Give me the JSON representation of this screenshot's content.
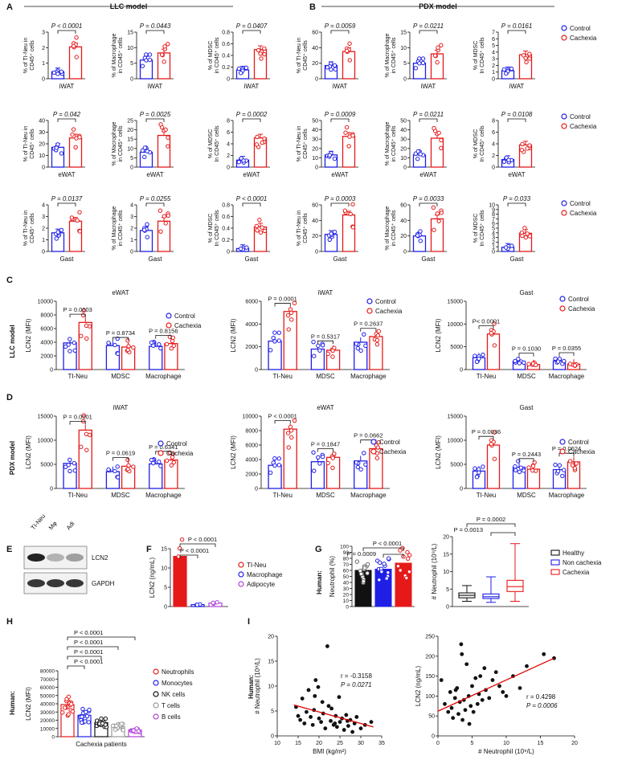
{
  "colors": {
    "blue": "#1f1fe6",
    "red": "#e61919",
    "purple": "#b040d8",
    "black": "#111111",
    "gray": "#9a9a9a",
    "line": "#e00000"
  },
  "panels": {
    "A": {
      "letter": "A",
      "heading": "LLC model"
    },
    "B": {
      "letter": "B",
      "heading": "PDX model"
    },
    "C": {
      "letter": "C",
      "side": "LLC model"
    },
    "D": {
      "letter": "D",
      "side": "PDX model"
    },
    "E": {
      "letter": "E"
    },
    "F": {
      "letter": "F"
    },
    "G": {
      "letter": "G",
      "side": "Human:"
    },
    "H": {
      "letter": "H",
      "side": "Human:"
    },
    "I": {
      "letter": "I",
      "side": "Human:"
    }
  },
  "legend_cc": [
    "Control",
    "Cachexia"
  ],
  "legend_G": [
    "Healthy",
    "Non cachexia",
    "Cachexia"
  ],
  "legend_H": [
    "Neutrophils",
    "Monocytes",
    "NK cells",
    "T cells",
    "B cells"
  ],
  "legend_F": [
    "TI-Neu",
    "Macrophage",
    "Adipocyte"
  ],
  "chart_data": [
    {
      "id": "A1",
      "type": "bar",
      "xlabel": "iWAT",
      "ylabel": [
        "% of TI-Neu in",
        "CD45⁺ cells"
      ],
      "ylim": [
        0,
        3
      ],
      "yticks": [
        0,
        1,
        2,
        3
      ],
      "values": [
        0.45,
        2.05
      ],
      "p": "P < 0.0001"
    },
    {
      "id": "A2",
      "type": "bar",
      "xlabel": "iWAT",
      "ylabel": [
        "% of Macrophage",
        "in CD45⁺ cells"
      ],
      "ylim": [
        0,
        15
      ],
      "yticks": [
        0,
        5,
        10,
        15
      ],
      "values": [
        6.0,
        8.3
      ],
      "p": "P = 0.0443"
    },
    {
      "id": "A3",
      "type": "bar",
      "xlabel": "iWAT",
      "ylabel": [
        "% of MDSC",
        "in CD45⁺ cells"
      ],
      "ylim": [
        0,
        0.8
      ],
      "yticks": [
        0.0,
        0.2,
        0.4,
        0.6,
        0.8
      ],
      "values": [
        0.15,
        0.5
      ],
      "p": "P = 0.0407"
    },
    {
      "id": "A4",
      "type": "bar",
      "xlabel": "eWAT",
      "ylabel": [
        "% of TI-Neu in",
        "CD45⁺ cells"
      ],
      "ylim": [
        0,
        40
      ],
      "yticks": [
        0,
        10,
        20,
        30,
        40
      ],
      "values": [
        17,
        25
      ],
      "p": "P = 0.042"
    },
    {
      "id": "A5",
      "type": "bar",
      "xlabel": "eWAT",
      "ylabel": [
        "% of Macrophage",
        "in CD45⁺ cells"
      ],
      "ylim": [
        0,
        25
      ],
      "yticks": [
        0,
        5,
        10,
        15,
        20,
        25
      ],
      "values": [
        8,
        17
      ],
      "p": "P = 0.0025"
    },
    {
      "id": "A6",
      "type": "bar",
      "xlabel": "eWAT",
      "ylabel": [
        "% of MDSC",
        "In CD45⁺ cells"
      ],
      "ylim": [
        0,
        8
      ],
      "yticks": [
        0,
        2,
        4,
        6,
        8
      ],
      "values": [
        1.2,
        5.0
      ],
      "p": "P = 0.0002"
    },
    {
      "id": "A7",
      "type": "bar",
      "xlabel": "Gast",
      "ylabel": [
        "% of TI-Neu in",
        "CD45⁺ cells"
      ],
      "ylim": [
        0,
        4
      ],
      "yticks": [
        0,
        1,
        2,
        3,
        4
      ],
      "values": [
        1.6,
        2.6
      ],
      "p": "P = 0.0137"
    },
    {
      "id": "A8",
      "type": "bar",
      "xlabel": "Gast",
      "ylabel": [
        "% of Macrophage",
        "in CD45⁺ cells"
      ],
      "ylim": [
        0,
        4
      ],
      "yticks": [
        0,
        1,
        2,
        3,
        4
      ],
      "values": [
        1.8,
        2.6
      ],
      "p": "P = 0.0255"
    },
    {
      "id": "A9",
      "type": "bar",
      "xlabel": "Gast",
      "ylabel": [
        "% of MDSC",
        "In CD45⁺ cells"
      ],
      "ylim": [
        0,
        0.8
      ],
      "yticks": [
        0.0,
        0.2,
        0.4,
        0.6,
        0.8
      ],
      "values": [
        0.05,
        0.42
      ],
      "p": "P < 0.0001"
    },
    {
      "id": "B1",
      "type": "bar",
      "xlabel": "iWAT",
      "ylabel": [
        "% of TI-Neu in",
        "CD45⁺ cells"
      ],
      "ylim": [
        0,
        60
      ],
      "yticks": [
        0,
        20,
        40,
        60
      ],
      "values": [
        17,
        35
      ],
      "p": "P = 0.0059"
    },
    {
      "id": "B2",
      "type": "bar",
      "xlabel": "iWAT",
      "ylabel": [
        "% of Macrophage",
        "in CD45⁺ cells"
      ],
      "ylim": [
        0,
        15
      ],
      "yticks": [
        0,
        5,
        10,
        15
      ],
      "values": [
        5,
        8
      ],
      "p": "P = 0.0211"
    },
    {
      "id": "B3",
      "type": "bar",
      "xlabel": "iWAT",
      "ylabel": [
        "% of MDSC",
        "In CD45⁺ cells"
      ],
      "ylim": [
        0,
        7
      ],
      "yticks": [
        0,
        1,
        2,
        3,
        4,
        5,
        6,
        7
      ],
      "values": [
        1.2,
        3.6
      ],
      "p": "P = 0.0161"
    },
    {
      "id": "B4",
      "type": "bar",
      "xlabel": "eWAT",
      "ylabel": [
        "% of TI-Neu in",
        "CD45⁺ cells"
      ],
      "ylim": [
        0,
        50
      ],
      "yticks": [
        0,
        10,
        20,
        30,
        40,
        50
      ],
      "values": [
        13,
        33
      ],
      "p": "P = 0.0009"
    },
    {
      "id": "B5",
      "type": "bar",
      "xlabel": "eWAT",
      "ylabel": [
        "% of Macrophage",
        "in CD45⁺ cells"
      ],
      "ylim": [
        0,
        50
      ],
      "yticks": [
        0,
        10,
        20,
        30,
        40,
        50
      ],
      "values": [
        13,
        31
      ],
      "p": "P = 0.0211"
    },
    {
      "id": "B6",
      "type": "bar",
      "xlabel": "eWAT",
      "ylabel": [
        "% of MDSC",
        "In CD45⁺ cells"
      ],
      "ylim": [
        0,
        8
      ],
      "yticks": [
        0,
        2,
        4,
        6,
        8
      ],
      "values": [
        1.3,
        3.8
      ],
      "p": "P = 0.0108"
    },
    {
      "id": "B7",
      "type": "bar",
      "xlabel": "Gast",
      "ylabel": [
        "% of TI-Neu in",
        "CD45⁺ cells"
      ],
      "ylim": [
        0,
        60
      ],
      "yticks": [
        0,
        20,
        40,
        60
      ],
      "values": [
        22,
        47
      ],
      "p": "P = 0.0003"
    },
    {
      "id": "B8",
      "type": "bar",
      "xlabel": "Gast",
      "ylabel": [
        "% of Macrophage",
        "in CD45⁺ cells"
      ],
      "ylim": [
        0,
        60
      ],
      "yticks": [
        0,
        20,
        40,
        60
      ],
      "values": [
        20,
        42
      ],
      "p": "P = 0.0033"
    },
    {
      "id": "B9",
      "type": "bar",
      "xlabel": "Gast",
      "ylabel": [
        "% of MDSC",
        "In CD45⁺ cells"
      ],
      "ylim": [
        0,
        10
      ],
      "yticks": [
        0,
        1,
        2,
        3,
        4,
        5,
        6,
        7,
        8,
        9,
        10
      ],
      "values": [
        0.9,
        3.9
      ],
      "p": "P = 0.033"
    },
    {
      "id": "C1",
      "type": "grouped-bar",
      "title": "eWAT",
      "ylabel": "LCN2 (MFI)",
      "ylim": [
        0,
        10000
      ],
      "yticks": [
        0,
        2000,
        4000,
        6000,
        8000,
        10000
      ],
      "categories": [
        "TI-Neu",
        "MDSC",
        "Macrophage"
      ],
      "series": [
        {
          "name": "Control",
          "values": [
            3900,
            3500,
            3400
          ]
        },
        {
          "name": "Cachexia",
          "values": [
            6900,
            3300,
            3800
          ]
        }
      ],
      "p": [
        "P = 0.0003",
        "P = 0.8734",
        "P = 0.8156"
      ]
    },
    {
      "id": "C2",
      "type": "grouped-bar",
      "title": "iWAT",
      "ylabel": "LCN2 (MFI)",
      "ylim": [
        0,
        6000
      ],
      "yticks": [
        0,
        2000,
        4000,
        6000
      ],
      "categories": [
        "TI-Neu",
        "MDSC",
        "Macrophage"
      ],
      "series": [
        {
          "name": "Control",
          "values": [
            2500,
            1800,
            2400
          ]
        },
        {
          "name": "Cachexia",
          "values": [
            5100,
            1700,
            2900
          ]
        }
      ],
      "p": [
        "P = 0.0001",
        "P = 0.5317",
        "P = 0.2637"
      ]
    },
    {
      "id": "C3",
      "type": "grouped-bar",
      "title": "Gast",
      "ylabel": "LCN2 (MFI)",
      "ylim": [
        0,
        15000
      ],
      "yticks": [
        0,
        5000,
        10000,
        15000
      ],
      "categories": [
        "TI-Neu",
        "MDSC",
        "Macrophage"
      ],
      "series": [
        {
          "name": "Control",
          "values": [
            2600,
            1800,
            1900
          ]
        },
        {
          "name": "Cachexia",
          "values": [
            7800,
            1100,
            1200
          ]
        }
      ],
      "p": [
        "P< 0.0001",
        "P = 0.1030",
        "P = 0.0355"
      ]
    },
    {
      "id": "D1",
      "type": "grouped-bar",
      "title": "iWAT",
      "ylabel": "LCN2 (MFI)",
      "ylim": [
        0,
        15000
      ],
      "yticks": [
        0,
        5000,
        10000,
        15000
      ],
      "categories": [
        "TI-Neu",
        "MDSC",
        "Macrophage"
      ],
      "series": [
        {
          "name": "Control",
          "values": [
            5200,
            3500,
            5100
          ]
        },
        {
          "name": "Cachexia",
          "values": [
            12100,
            4600,
            5900
          ]
        }
      ],
      "p": [
        "P = 0.0001",
        "P = 0.0619",
        "P = 0.6341"
      ]
    },
    {
      "id": "D2",
      "type": "grouped-bar",
      "title": "eWAT",
      "ylabel": "LCN2 (MFI)",
      "ylim": [
        0,
        10000
      ],
      "yticks": [
        0,
        2000,
        4000,
        6000,
        8000,
        10000
      ],
      "categories": [
        "TI-Neu",
        "MDSC",
        "Macrophage"
      ],
      "series": [
        {
          "name": "Control",
          "values": [
            3200,
            3700,
            3800
          ]
        },
        {
          "name": "Cachexia",
          "values": [
            8200,
            4300,
            5500
          ]
        }
      ],
      "p": [
        "P < 0.0001",
        "P = 0.1847",
        "P = 0.0662"
      ]
    },
    {
      "id": "D3",
      "type": "grouped-bar",
      "title": "Gast",
      "ylabel": "LCN2 (MFI)",
      "ylim": [
        0,
        15000
      ],
      "yticks": [
        0,
        5000,
        10000,
        15000
      ],
      "categories": [
        "TI-Neu",
        "MDSC",
        "Macrophage"
      ],
      "series": [
        {
          "name": "Control",
          "values": [
            3600,
            4400,
            3900
          ]
        },
        {
          "name": "Cachexia",
          "values": [
            9000,
            4000,
            5500
          ]
        }
      ],
      "p": [
        "P = 0.0036",
        "P = 0.2443",
        "P = 0.0624"
      ]
    },
    {
      "id": "F",
      "type": "bar",
      "ylabel": "LCN2 (ng/mL)",
      "ylim": [
        0,
        15
      ],
      "yticks": [
        0,
        5,
        10,
        15
      ],
      "categories": [
        "TI-Neu",
        "Macrophage",
        "Adipocyte"
      ],
      "values": [
        13,
        0.5,
        0.9
      ],
      "p": [
        "P < 0.0001",
        "P < 0.0001"
      ]
    },
    {
      "id": "G1",
      "type": "bar",
      "ylabel": "Neutrophil (%)",
      "ylim": [
        0,
        100
      ],
      "yticks": [
        0,
        10,
        20,
        30,
        40,
        50,
        60,
        70,
        80,
        90,
        100
      ],
      "categories": [
        "Healthy",
        "Non cachexia",
        "Cachexia"
      ],
      "values": [
        60,
        62,
        72
      ],
      "p": [
        "P < 0.0001",
        "P = 0.0009"
      ]
    },
    {
      "id": "G2",
      "type": "box",
      "ylabel": "# Neutrophil (10⁹/L)",
      "ylim": [
        0,
        20
      ],
      "yticks": [
        0,
        5,
        10,
        15,
        20
      ],
      "categories": [
        "Healthy",
        "Non cachexia",
        "Cachexia"
      ],
      "boxes": [
        [
          1.5,
          2.5,
          3.2,
          3.9,
          6
        ],
        [
          1.2,
          2.3,
          2.8,
          3.6,
          8.5
        ],
        [
          1.5,
          4.3,
          5.7,
          7.5,
          18
        ]
      ],
      "p": [
        "P = 0.0002",
        "P = 0.0013"
      ]
    },
    {
      "id": "H",
      "type": "bar",
      "ylabel": "LCN2 (MFI)",
      "xlabel": "Cachexia patients",
      "ylim": [
        0,
        80000
      ],
      "yticks": [
        0,
        10000,
        20000,
        30000,
        40000,
        50000,
        60000,
        70000,
        80000
      ],
      "categories": [
        "Neutrophils",
        "Monocytes",
        "NK cells",
        "T cells",
        "B cells"
      ],
      "values": [
        39000,
        26000,
        17000,
        12000,
        8000
      ],
      "p": [
        "P < 0.0001",
        "P < 0.0001",
        "P < 0.0001",
        "P < 0.0001"
      ]
    },
    {
      "id": "I1",
      "type": "scatter",
      "xlabel": "BMI (kg/m²)",
      "ylabel": "# Neutrophil (10⁹/L)",
      "xlim": [
        10,
        35
      ],
      "ylim": [
        0,
        20
      ],
      "xticks": [
        10,
        15,
        20,
        25,
        30,
        35
      ],
      "yticks": [
        0,
        5,
        10,
        15,
        20
      ],
      "r": "r = -0.3158",
      "p": "P = 0.0271",
      "fit": [
        [
          14,
          6.2
        ],
        [
          33,
          1.8
        ]
      ],
      "points": [
        [
          14.5,
          5.8
        ],
        [
          15,
          4
        ],
        [
          15.5,
          3.2
        ],
        [
          16,
          7.5
        ],
        [
          16.5,
          2.5
        ],
        [
          17,
          4.8
        ],
        [
          17.5,
          9.2
        ],
        [
          18,
          3.8
        ],
        [
          18.5,
          2.2
        ],
        [
          19,
          8
        ],
        [
          19.2,
          11.2
        ],
        [
          19.8,
          9.8
        ],
        [
          20,
          3.5
        ],
        [
          20.5,
          2.8
        ],
        [
          21,
          4.5
        ],
        [
          21.5,
          1.5
        ],
        [
          22,
          18
        ],
        [
          22.3,
          6
        ],
        [
          22.8,
          3
        ],
        [
          23,
          5.5
        ],
        [
          23.5,
          2.2
        ],
        [
          24,
          4
        ],
        [
          24.3,
          1.8
        ],
        [
          24.8,
          7.8
        ],
        [
          25,
          2.8
        ],
        [
          25.5,
          3.5
        ],
        [
          26,
          1.2
        ],
        [
          26.5,
          4.2
        ],
        [
          27,
          2
        ],
        [
          27.5,
          3.2
        ],
        [
          28,
          0.8
        ],
        [
          28.5,
          2.5
        ],
        [
          29,
          3.8
        ],
        [
          30,
          1.5
        ],
        [
          31,
          2.2
        ],
        [
          32.5,
          2.8
        ],
        [
          20.8,
          6.8
        ],
        [
          18.8,
          5.2
        ],
        [
          23.8,
          2.5
        ],
        [
          26.8,
          3
        ]
      ]
    },
    {
      "id": "I2",
      "type": "scatter",
      "xlabel": "# Neutrophil (10⁹/L)",
      "ylabel": "LCN2 (ng/mL)",
      "xlim": [
        0,
        20
      ],
      "ylim": [
        0,
        250
      ],
      "xticks": [
        0,
        5,
        10,
        15,
        20
      ],
      "yticks": [
        0,
        50,
        100,
        150,
        200,
        250
      ],
      "r": "r = 0.4298",
      "p": "P = 0.0006",
      "fit": [
        [
          0,
          62
        ],
        [
          17,
          195
        ]
      ],
      "points": [
        [
          0.5,
          140
        ],
        [
          1,
          80
        ],
        [
          1.5,
          60
        ],
        [
          1.8,
          110
        ],
        [
          2,
          70
        ],
        [
          2.2,
          45
        ],
        [
          2.5,
          95
        ],
        [
          2.8,
          120
        ],
        [
          3,
          55
        ],
        [
          3.2,
          85
        ],
        [
          3.4,
          230
        ],
        [
          3.5,
          205
        ],
        [
          3.8,
          90
        ],
        [
          4,
          65
        ],
        [
          4.2,
          180
        ],
        [
          4.5,
          100
        ],
        [
          4.8,
          75
        ],
        [
          5,
          125
        ],
        [
          5.2,
          60
        ],
        [
          5.5,
          145
        ],
        [
          5.8,
          80
        ],
        [
          6,
          105
        ],
        [
          6.2,
          150
        ],
        [
          6.5,
          90
        ],
        [
          6.8,
          170
        ],
        [
          7,
          115
        ],
        [
          7.5,
          95
        ],
        [
          8,
          140
        ],
        [
          8.5,
          160
        ],
        [
          9,
          125
        ],
        [
          9.5,
          110
        ],
        [
          10,
          100
        ],
        [
          11,
          150
        ],
        [
          12,
          120
        ],
        [
          13,
          175
        ],
        [
          15.5,
          205
        ],
        [
          17,
          195
        ],
        [
          3.6,
          40
        ],
        [
          4.6,
          30
        ],
        [
          2.6,
          115
        ]
      ]
    }
  ],
  "E": {
    "lanes": [
      "TI-Neu",
      "Mφ",
      "Adi"
    ],
    "bands": [
      "LCN2",
      "GAPDH"
    ]
  }
}
